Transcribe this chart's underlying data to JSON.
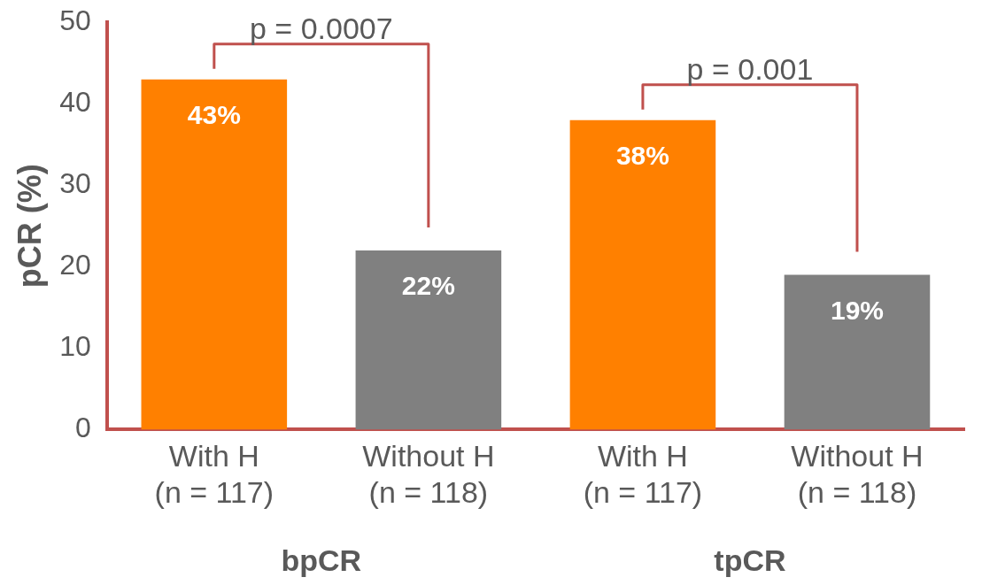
{
  "chart_data": {
    "type": "bar",
    "ylabel": "pCR (%)",
    "categories": [
      "With H\n(n = 117)",
      "Without H\n(n = 118)",
      "With H\n(n = 117)",
      "Without H\n(n = 118)"
    ],
    "values": [
      43,
      22,
      38,
      19
    ],
    "colors": [
      "#ff8000",
      "#808080",
      "#ff8000",
      "#808080"
    ],
    "value_labels": [
      "43%",
      "22%",
      "38%",
      "19%"
    ],
    "ylim": [
      0,
      50
    ],
    "yticks": [
      0,
      10,
      20,
      30,
      40,
      50
    ],
    "grid": false,
    "legend": false,
    "annotations": [
      "p = 0.0007",
      "p = 0.001",
      "bpCR",
      "tpCR"
    ]
  }
}
